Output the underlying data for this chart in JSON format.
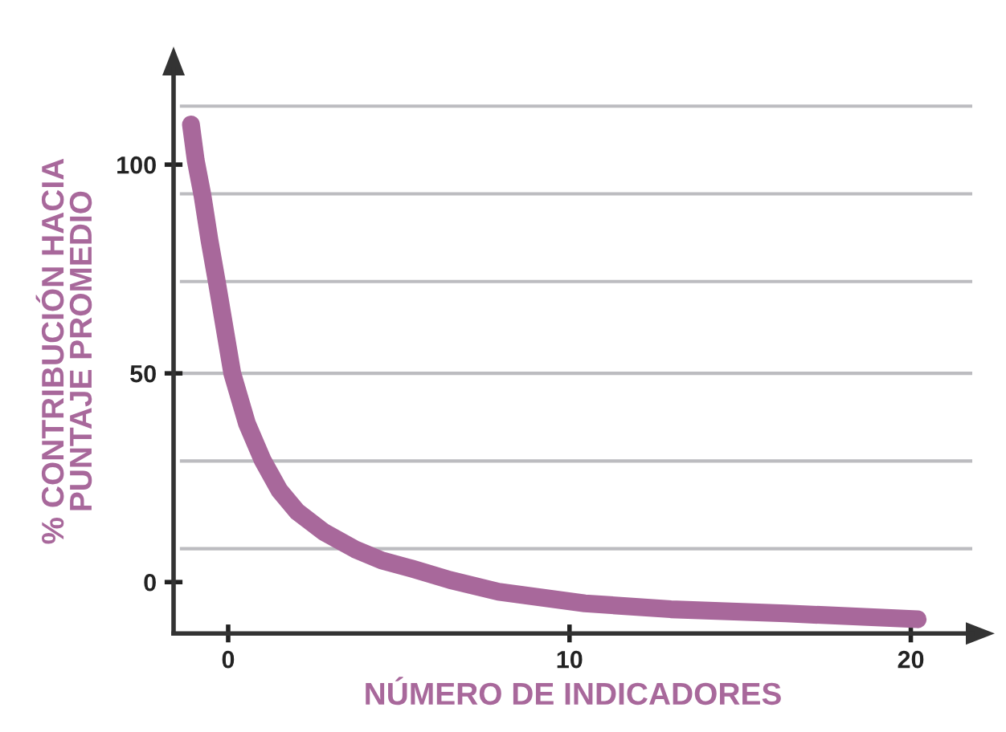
{
  "chart_data": {
    "type": "line",
    "xlabel": "NÚMERO DE INDICADORES",
    "ylabel": "% CONTRIBUCIÓN HACIA\nPUNTAJE PROMEDIO",
    "x": [
      -1.09,
      -0.95,
      -0.75,
      -0.55,
      -0.33,
      0.12,
      0.55,
      1.01,
      1.5,
      2.02,
      2.8,
      3.71,
      4.5,
      5.39,
      6.5,
      7.92,
      10.45,
      12.97,
      16.34,
      20.2
    ],
    "series": [
      {
        "color": "#a8689b",
        "values": [
          109.6,
          101,
          92.5,
          82,
          71.8,
          50,
          38,
          29.2,
          22,
          16.9,
          12,
          7.9,
          5.2,
          3.2,
          0.5,
          -2.3,
          -5.1,
          -6.5,
          -7.5,
          -8.9
        ]
      }
    ],
    "xlim": [
      -1.6,
      21.8
    ],
    "ylim": [
      -12.3,
      122.9
    ],
    "xticks": [
      0,
      10,
      20
    ],
    "yticks": [
      0,
      50,
      100
    ],
    "ref_lines": [
      {
        "axis": "y",
        "value": 114,
        "color": "#bcbcc0"
      },
      {
        "axis": "y",
        "value": 93,
        "color": "#bcbcc0"
      },
      {
        "axis": "y",
        "value": 72,
        "color": "#bcbcc0"
      },
      {
        "axis": "y",
        "value": 50,
        "color": "#bcbcc0"
      },
      {
        "axis": "y",
        "value": 29,
        "color": "#bcbcc0"
      },
      {
        "axis": "y",
        "value": 8,
        "color": "#bcbcc0"
      }
    ],
    "grid": false,
    "legend": false,
    "line_style": "solid"
  }
}
